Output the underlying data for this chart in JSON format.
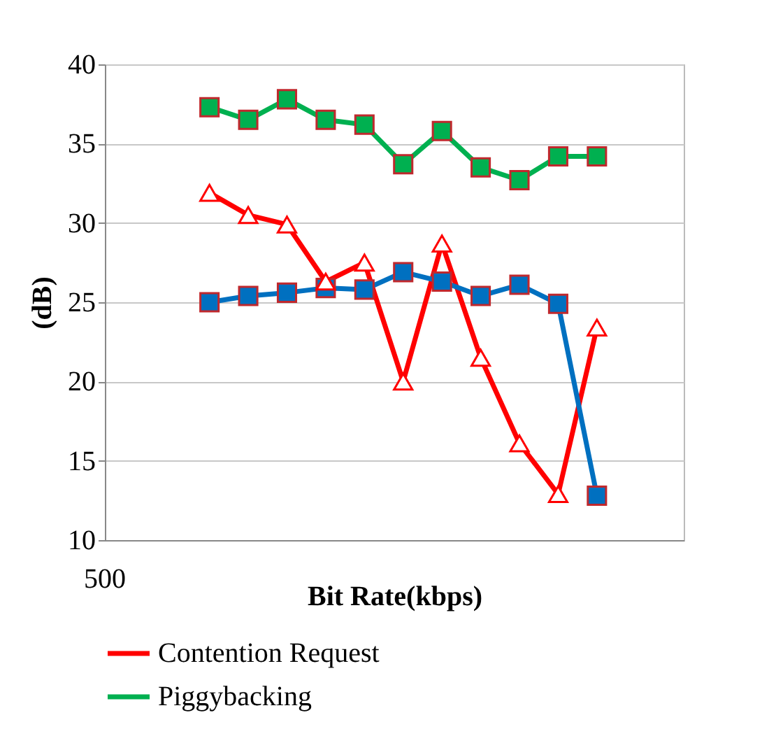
{
  "chart_data": {
    "type": "line",
    "xlabel": "Bit Rate(kbps)",
    "ylabel": "(dB)",
    "ylim": [
      10,
      40
    ],
    "yticks": [
      10,
      15,
      20,
      25,
      30,
      35,
      40
    ],
    "grid": "y",
    "legend": "bottom",
    "annotations": [
      "500"
    ],
    "categories": [
      null,
      null,
      null,
      null,
      null,
      null,
      null,
      null,
      null,
      null,
      null
    ],
    "series": [
      {
        "name": "Contention Request",
        "color": "#ff0000",
        "marker": "triangle",
        "values": [
          31.9,
          30.5,
          29.9,
          26.3,
          27.5,
          20.0,
          28.7,
          21.5,
          16.1,
          12.9,
          23.4
        ]
      },
      {
        "name": "Piggybacking",
        "color": "#00b050",
        "marker": "square",
        "values": [
          37.3,
          36.5,
          37.8,
          36.5,
          36.2,
          33.7,
          35.8,
          33.5,
          32.7,
          34.2,
          34.2
        ]
      },
      {
        "color": "#0070c0",
        "marker": "square",
        "values": [
          25.0,
          25.4,
          25.6,
          25.9,
          25.8,
          26.9,
          26.3,
          25.4,
          26.1,
          24.9,
          12.8
        ]
      }
    ]
  }
}
